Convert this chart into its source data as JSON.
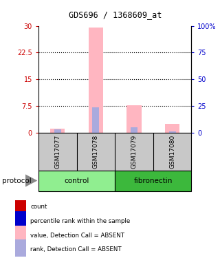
{
  "title": "GDS696 / 1368609_at",
  "samples": [
    "GSM17077",
    "GSM17078",
    "GSM17079",
    "GSM17080"
  ],
  "groups": [
    "control",
    "control",
    "fibronectin",
    "fibronectin"
  ],
  "group_colors": {
    "control": "#90EE90",
    "fibronectin": "#3CB83C"
  },
  "ylim_left": [
    0,
    30
  ],
  "ylim_right": [
    0,
    100
  ],
  "yticks_left": [
    0,
    7.5,
    15,
    22.5,
    30
  ],
  "yticks_right": [
    0,
    25,
    50,
    75,
    100
  ],
  "ytick_labels_right": [
    "0",
    "25",
    "50",
    "75",
    "100%"
  ],
  "pink_values": [
    1.2,
    29.5,
    7.8,
    2.5
  ],
  "blue_values": [
    0.9,
    7.2,
    1.5,
    0.4
  ],
  "pink_color": "#FFB6C1",
  "blue_color": "#AAAADD",
  "bg_color": "#C8C8C8",
  "legend_items": [
    {
      "color": "#CC0000",
      "label": "count"
    },
    {
      "color": "#0000CC",
      "label": "percentile rank within the sample"
    },
    {
      "color": "#FFB6C1",
      "label": "value, Detection Call = ABSENT"
    },
    {
      "color": "#AAAADD",
      "label": "rank, Detection Call = ABSENT"
    }
  ]
}
